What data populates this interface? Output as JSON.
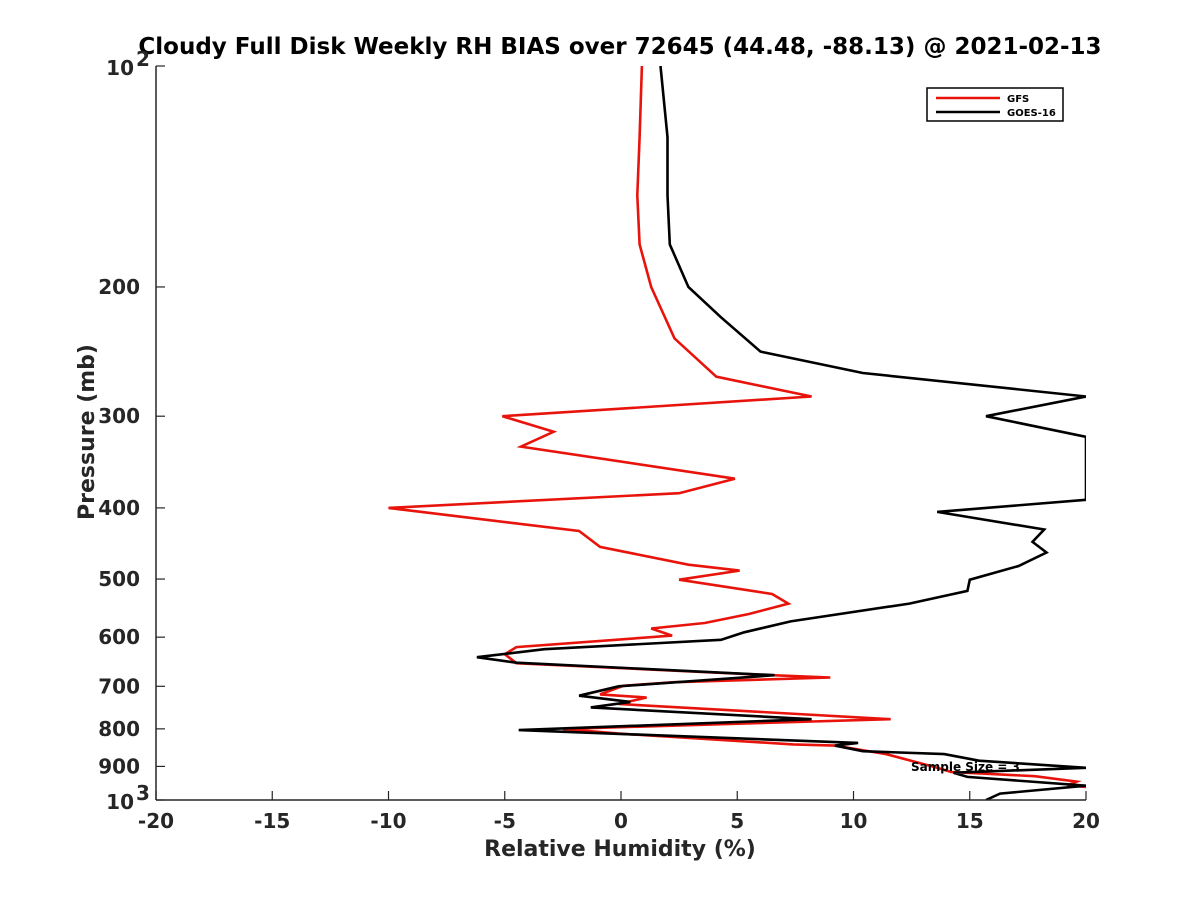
{
  "chart_data": {
    "type": "line",
    "title": "Cloudy Full Disk Weekly RH BIAS over 72645 (44.48, -88.13) @ 2021-02-13",
    "xlabel": "Relative Humidity (%)",
    "ylabel": "Pressure (mb)",
    "xlim": [
      -20,
      20
    ],
    "ylim": [
      100,
      1000
    ],
    "y_scale": "log",
    "y_reversed": true,
    "x_ticks": [
      -20,
      -15,
      -10,
      -5,
      0,
      5,
      10,
      15,
      20
    ],
    "x_tick_labels": [
      "-20",
      "-15",
      "-10",
      "-5",
      "0",
      "5",
      "10",
      "15",
      "20"
    ],
    "y_ticks": [
      {
        "value": 100,
        "base": "10",
        "exp": "2"
      },
      {
        "value": 200,
        "label": "200"
      },
      {
        "value": 300,
        "label": "300"
      },
      {
        "value": 400,
        "label": "400"
      },
      {
        "value": 500,
        "label": "500"
      },
      {
        "value": 600,
        "label": "600"
      },
      {
        "value": 700,
        "label": "700"
      },
      {
        "value": 800,
        "label": "800"
      },
      {
        "value": 900,
        "label": "900"
      },
      {
        "value": 1000,
        "base": "10",
        "exp": "3"
      }
    ],
    "grid": false,
    "legend_position": "top-right",
    "annotation": "Sample Size = 3",
    "series": [
      {
        "name": "GFS",
        "color": "#e8140c",
        "points": [
          [
            0.9,
            100
          ],
          [
            0.8,
            125
          ],
          [
            0.7,
            150
          ],
          [
            0.8,
            175
          ],
          [
            1.3,
            200
          ],
          [
            2.3,
            235
          ],
          [
            4.1,
            265
          ],
          [
            8.2,
            282
          ],
          [
            -5.1,
            300
          ],
          [
            -2.9,
            315
          ],
          [
            -4.3,
            330
          ],
          [
            4.9,
            365
          ],
          [
            2.5,
            382
          ],
          [
            -10.0,
            400
          ],
          [
            -1.8,
            430
          ],
          [
            -0.9,
            452
          ],
          [
            2.9,
            478
          ],
          [
            5.1,
            487
          ],
          [
            2.5,
            501
          ],
          [
            6.5,
            524
          ],
          [
            7.2,
            540
          ],
          [
            5.5,
            558
          ],
          [
            3.6,
            574
          ],
          [
            1.3,
            584
          ],
          [
            2.2,
            597
          ],
          [
            -4.5,
            619
          ],
          [
            -5.0,
            633
          ],
          [
            -4.5,
            651
          ],
          [
            6.5,
            676
          ],
          [
            9.0,
            681
          ],
          [
            2.3,
            691
          ],
          [
            0.1,
            699
          ],
          [
            -0.9,
            718
          ],
          [
            1.1,
            725
          ],
          [
            -0.1,
            740
          ],
          [
            11.6,
            776
          ],
          [
            -2.5,
            800
          ],
          [
            -0.1,
            812
          ],
          [
            7.4,
            840
          ],
          [
            9.2,
            843
          ],
          [
            11.4,
            866
          ],
          [
            13.5,
            902
          ],
          [
            14.2,
            916
          ],
          [
            17.8,
            928
          ],
          [
            19.6,
            944
          ],
          [
            19.2,
            955
          ],
          [
            20.0,
            960
          ]
        ]
      },
      {
        "name": "GOES-16",
        "color": "#000000",
        "points": [
          [
            1.7,
            100
          ],
          [
            2.0,
            125
          ],
          [
            2.0,
            150
          ],
          [
            2.1,
            175
          ],
          [
            2.9,
            200
          ],
          [
            4.3,
            220
          ],
          [
            6.0,
            245
          ],
          [
            10.4,
            262
          ],
          [
            20.0,
            282
          ],
          [
            15.7,
            300
          ],
          [
            20.0,
            320
          ],
          [
            20.0,
            390
          ],
          [
            13.6,
            405
          ],
          [
            18.2,
            428
          ],
          [
            17.7,
            445
          ],
          [
            18.3,
            460
          ],
          [
            17.1,
            480
          ],
          [
            15.0,
            501
          ],
          [
            14.9,
            519
          ],
          [
            12.4,
            540
          ],
          [
            7.3,
            571
          ],
          [
            5.3,
            591
          ],
          [
            4.3,
            605
          ],
          [
            -3.3,
            623
          ],
          [
            -6.2,
            639
          ],
          [
            -4.5,
            650
          ],
          [
            6.6,
            676
          ],
          [
            -0.1,
            700
          ],
          [
            -1.8,
            721
          ],
          [
            0.4,
            735
          ],
          [
            -1.3,
            748
          ],
          [
            8.2,
            776
          ],
          [
            -4.4,
            803
          ],
          [
            10.2,
            836
          ],
          [
            9.2,
            843
          ],
          [
            10.4,
            858
          ],
          [
            13.9,
            866
          ],
          [
            15.4,
            884
          ],
          [
            20.0,
            904
          ],
          [
            14.3,
            918
          ],
          [
            14.9,
            930
          ],
          [
            20.0,
            956
          ],
          [
            16.3,
            980
          ],
          [
            15.7,
            1000
          ]
        ]
      }
    ]
  }
}
